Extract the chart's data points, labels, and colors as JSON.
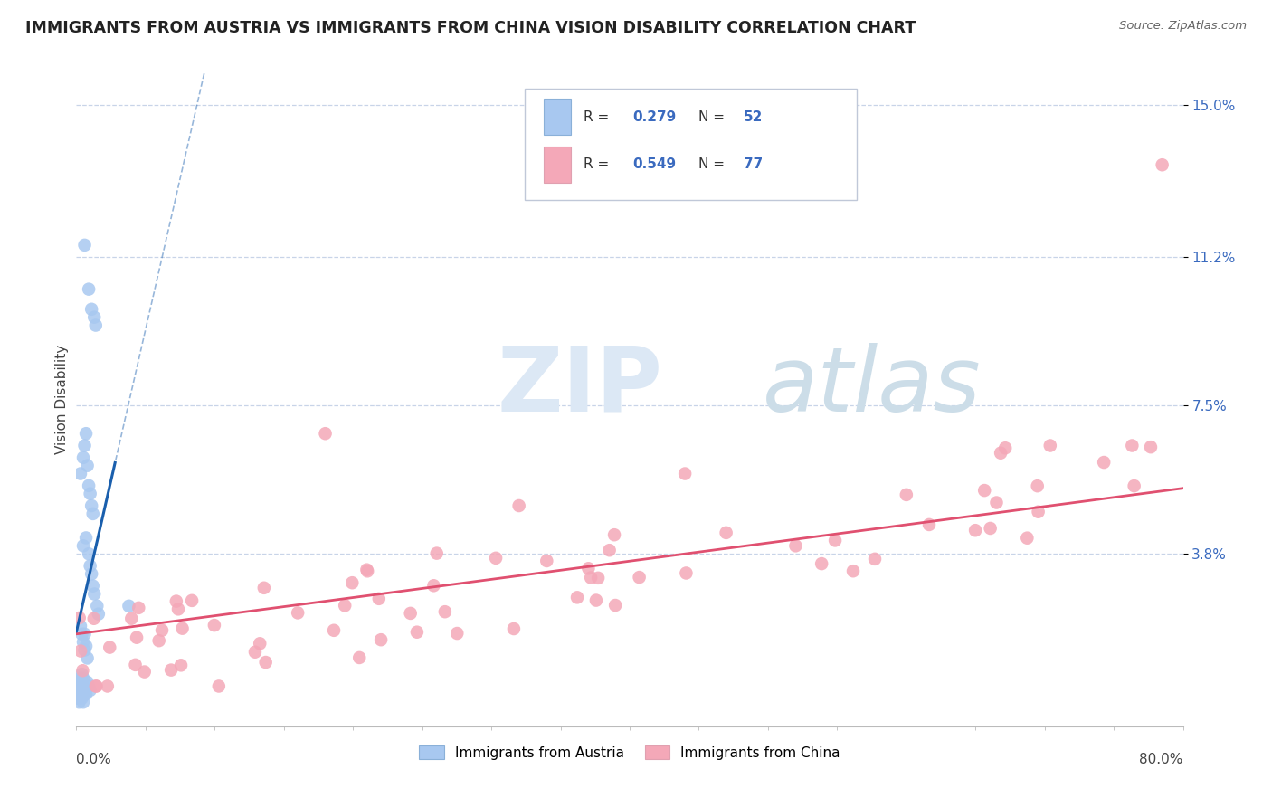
{
  "title": "IMMIGRANTS FROM AUSTRIA VS IMMIGRANTS FROM CHINA VISION DISABILITY CORRELATION CHART",
  "source": "Source: ZipAtlas.com",
  "ylabel": "Vision Disability",
  "ytick_values": [
    0.0,
    0.038,
    0.075,
    0.112,
    0.15
  ],
  "xlim": [
    0.0,
    0.8
  ],
  "ylim": [
    -0.005,
    0.158
  ],
  "austria_R": 0.279,
  "austria_N": 52,
  "china_R": 0.549,
  "china_N": 77,
  "austria_color": "#a8c8f0",
  "austria_line_color": "#1a5fad",
  "china_color": "#f4a8b8",
  "china_line_color": "#e05070",
  "background_color": "#ffffff",
  "grid_color": "#c8d4e8",
  "title_fontsize": 12.5,
  "axis_label_fontsize": 11,
  "legend_label_fontsize": 11
}
